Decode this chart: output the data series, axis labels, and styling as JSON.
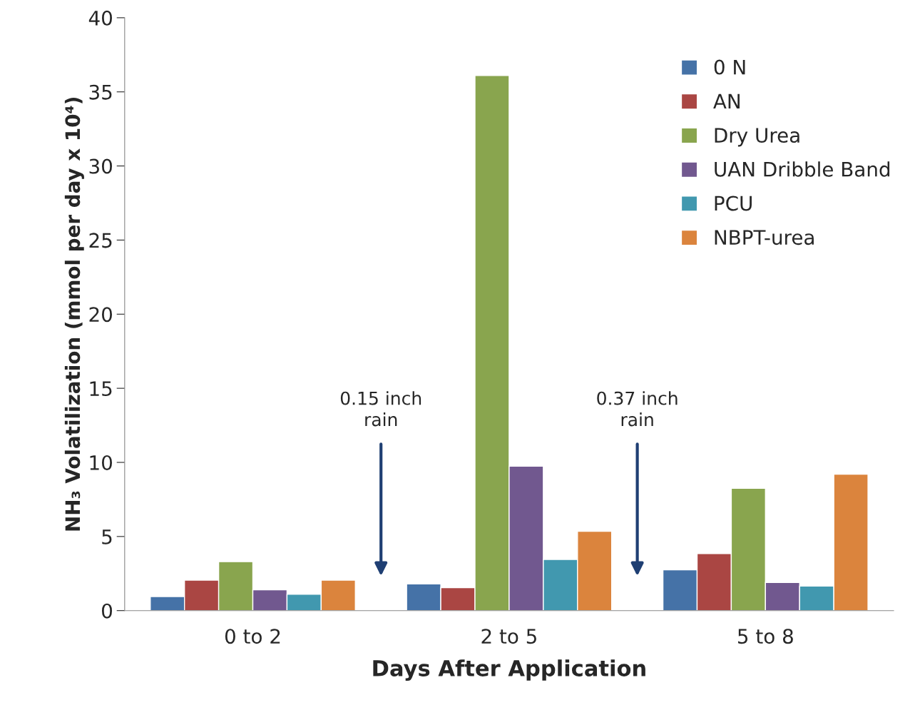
{
  "chart_data": {
    "type": "bar",
    "xlabel": "Days After Application",
    "ylabel": "NH₃ Volatilization (mmol per day x 10⁴)",
    "categories": [
      "0 to 2",
      "2 to 5",
      "5 to 8"
    ],
    "series": [
      {
        "name": "0 N",
        "color": "#4572a7",
        "values": [
          0.95,
          1.8,
          2.75
        ]
      },
      {
        "name": "AN",
        "color": "#aa4643",
        "values": [
          2.05,
          1.55,
          3.85
        ]
      },
      {
        "name": "Dry Urea",
        "color": "#89a54e",
        "values": [
          3.3,
          36.1,
          8.25
        ]
      },
      {
        "name": "UAN Dribble Band",
        "color": "#71588f",
        "values": [
          1.4,
          9.75,
          1.9
        ]
      },
      {
        "name": "PCU",
        "color": "#4198af",
        "values": [
          1.1,
          3.45,
          1.65
        ]
      },
      {
        "name": "NBPT-urea",
        "color": "#db843d",
        "values": [
          2.05,
          5.35,
          9.2
        ]
      }
    ],
    "ylim": [
      0,
      40
    ],
    "yticks": [
      0,
      5,
      10,
      15,
      20,
      25,
      30,
      35,
      40
    ],
    "annotations": [
      "0.15 inch\nrain",
      "0.37 inch\nrain"
    ],
    "legend": "top right",
    "grid": false
  }
}
